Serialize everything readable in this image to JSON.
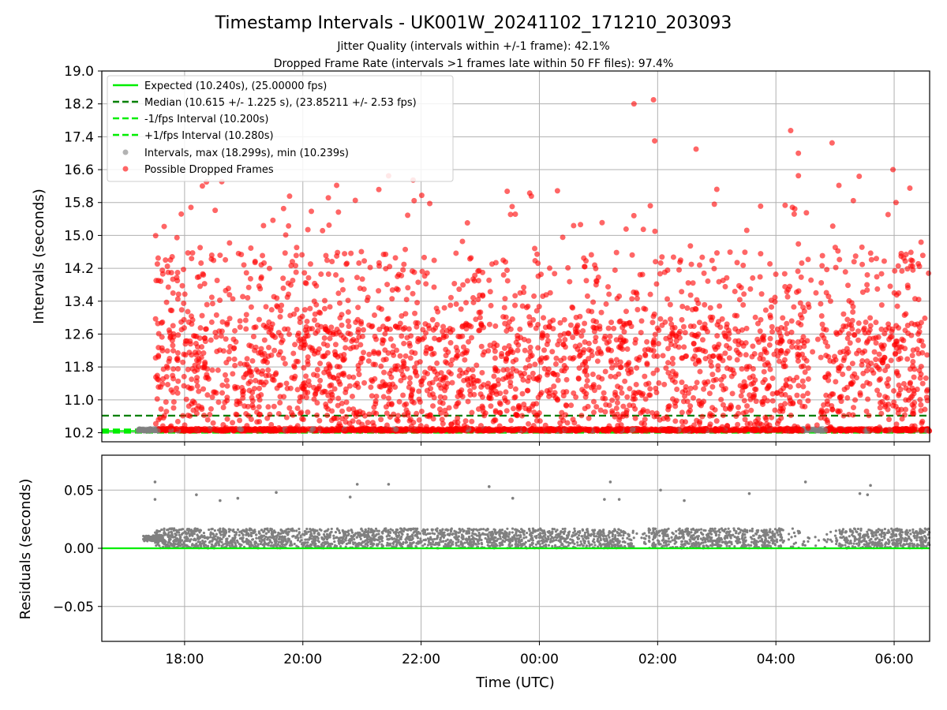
{
  "chart_data": [
    {
      "type": "scatter",
      "title": "Timestamp Intervals - UK001W_20241102_171210_203093",
      "subtitle_lines": [
        "Jitter Quality (intervals within +/-1 frame): 42.1%",
        "Dropped Frame Rate (intervals >1 frames late within 50 FF files): 97.4%"
      ],
      "xlabel": "",
      "ylabel": "Intervals (seconds)",
      "x_range_hours": [
        16.6,
        30.6
      ],
      "x_tick_values": [
        18,
        20,
        22,
        24,
        26,
        28,
        30
      ],
      "ylim": [
        9.98,
        19.0
      ],
      "y_ticks": [
        10.2,
        11.0,
        11.8,
        12.6,
        13.4,
        14.2,
        15.0,
        15.8,
        16.6,
        17.4,
        18.2,
        19.0
      ],
      "y_tick_labels": [
        "10.2",
        "11.0",
        "11.8",
        "12.6",
        "13.4",
        "14.2",
        "15.0",
        "15.8",
        "16.6",
        "17.4",
        "18.2",
        "19.0"
      ],
      "grid": "horizontal and vertical",
      "legend_position": "top-left",
      "legend": [
        "Expected (10.240s), (25.00000 fps)",
        "Median (10.615 +/- 1.225 s), (23.85211 +/- 2.53 fps)",
        "-1/fps Interval (10.200s)",
        "+1/fps Interval (10.280s)",
        "Intervals, max (18.299s), min (10.239s)",
        "Possible Dropped Frames"
      ],
      "reference_lines": [
        {
          "name": "Expected",
          "y": 10.24,
          "color": "#00ee00",
          "style": "solid"
        },
        {
          "name": "Median",
          "y": 10.615,
          "color": "#007f00",
          "style": "dashed"
        },
        {
          "name": "-1/fps Interval",
          "y": 10.2,
          "color": "#00ee00",
          "style": "dashed"
        },
        {
          "name": "+1/fps Interval",
          "y": 10.28,
          "color": "#00ee00",
          "style": "dashed"
        }
      ],
      "series": [
        {
          "name": "Intervals, max (18.299s), min (10.239s)",
          "color": "#808080",
          "marker": "circle",
          "count_estimate": 3500,
          "range": [
            10.239,
            18.299
          ]
        },
        {
          "name": "Possible Dropped Frames",
          "color": "#ff0000",
          "marker": "circle",
          "count_estimate": 3400,
          "range": [
            10.3,
            18.3
          ]
        }
      ],
      "highlight_points": [
        {
          "x": 25.93,
          "y": 18.3
        },
        {
          "x": 25.6,
          "y": 18.2
        },
        {
          "x": 28.25,
          "y": 17.55
        },
        {
          "x": 28.38,
          "y": 17.0
        },
        {
          "x": 25.95,
          "y": 17.3
        },
        {
          "x": 26.65,
          "y": 17.1
        },
        {
          "x": 28.95,
          "y": 17.25
        },
        {
          "x": 18.37,
          "y": 16.3
        },
        {
          "x": 21.45,
          "y": 16.45
        },
        {
          "x": 29.98,
          "y": 16.6
        }
      ]
    },
    {
      "type": "scatter",
      "title": "",
      "xlabel": "Time (UTC)",
      "ylabel": "Residuals (seconds)",
      "x_range_hours": [
        16.6,
        30.6
      ],
      "x_tick_values": [
        18,
        20,
        22,
        24,
        26,
        28,
        30
      ],
      "x_tick_labels": [
        "18:00",
        "20:00",
        "22:00",
        "00:00",
        "02:00",
        "04:00",
        "06:00"
      ],
      "ylim": [
        -0.08,
        0.08
      ],
      "y_ticks": [
        -0.05,
        0.0,
        0.05
      ],
      "y_tick_labels": [
        "−0.05",
        "0.00",
        "0.05"
      ],
      "grid": "horizontal and vertical",
      "reference_lines": [
        {
          "name": "zero",
          "y": 0.0,
          "color": "#00ee00",
          "style": "solid"
        }
      ],
      "series": [
        {
          "name": "",
          "color": "#808080",
          "marker": "circle",
          "count_estimate": 3500,
          "range": [
            0.0,
            0.057
          ]
        }
      ],
      "highlight_points": [
        {
          "x": 17.5,
          "y": 0.057
        },
        {
          "x": 17.5,
          "y": 0.042
        },
        {
          "x": 18.2,
          "y": 0.046
        },
        {
          "x": 18.6,
          "y": 0.041
        },
        {
          "x": 18.9,
          "y": 0.043
        },
        {
          "x": 19.55,
          "y": 0.048
        },
        {
          "x": 20.8,
          "y": 0.044
        },
        {
          "x": 20.92,
          "y": 0.055
        },
        {
          "x": 21.45,
          "y": 0.055
        },
        {
          "x": 23.15,
          "y": 0.053
        },
        {
          "x": 23.55,
          "y": 0.043
        },
        {
          "x": 25.1,
          "y": 0.042
        },
        {
          "x": 25.2,
          "y": 0.057
        },
        {
          "x": 25.35,
          "y": 0.042
        },
        {
          "x": 26.05,
          "y": 0.05
        },
        {
          "x": 26.45,
          "y": 0.041
        },
        {
          "x": 27.55,
          "y": 0.047
        },
        {
          "x": 28.5,
          "y": 0.057
        },
        {
          "x": 29.42,
          "y": 0.047
        },
        {
          "x": 29.55,
          "y": 0.046
        },
        {
          "x": 29.6,
          "y": 0.054
        }
      ]
    }
  ]
}
